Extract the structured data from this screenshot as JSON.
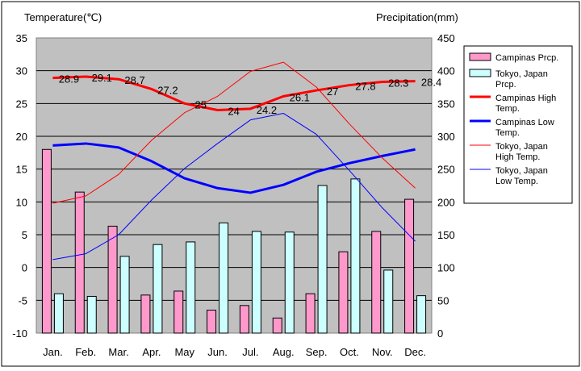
{
  "chart_data": {
    "type": "bar",
    "title": "",
    "left_axis": {
      "label": "Temperature(℃)",
      "min": -10,
      "max": 35,
      "step": 5
    },
    "right_axis": {
      "label": "Precipitation(mm)",
      "min": 0,
      "max": 450,
      "step": 50
    },
    "categories": [
      "Jan.",
      "Feb.",
      "Mar.",
      "Apr.",
      "May",
      "Jun.",
      "Jul.",
      "Aug.",
      "Sep.",
      "Oct.",
      "Nov.",
      "Dec."
    ],
    "grid": true,
    "legend_position": "right",
    "bar_series": [
      {
        "name": "Campinas Prcp.",
        "color": "#ff99cc",
        "values": [
          280,
          215,
          163,
          58,
          64,
          35,
          42,
          23,
          60,
          124,
          155,
          204
        ]
      },
      {
        "name": "Tokyo, Japan Prcp.",
        "color": "#ccffff",
        "values": [
          60,
          56,
          117,
          135,
          139,
          168,
          155,
          154,
          225,
          235,
          96,
          57
        ]
      }
    ],
    "line_series": [
      {
        "name": "Campinas High Temp.",
        "color": "#ff0000",
        "width": 3,
        "values": [
          28.9,
          29.1,
          28.7,
          27.2,
          25,
          24,
          24.2,
          26.1,
          27,
          27.8,
          28.3,
          28.4
        ],
        "labels": [
          "28.9",
          "29.1",
          "28.7",
          "27.2",
          "25",
          "24",
          "24.2",
          "26.1",
          "27",
          "27.8",
          "28.3",
          "28.4"
        ]
      },
      {
        "name": "Campinas Low Temp.",
        "color": "#0000ff",
        "width": 3,
        "values": [
          18.6,
          18.9,
          18.3,
          16.2,
          13.6,
          12.1,
          11.4,
          12.6,
          14.6,
          15.9,
          17.0,
          18.0
        ]
      },
      {
        "name": "Tokyo, Japan High Temp.",
        "color": "#ff0000",
        "width": 1,
        "values": [
          9.8,
          10.9,
          14.2,
          19.4,
          23.6,
          26.1,
          29.9,
          31.3,
          27.5,
          21.9,
          16.7,
          12.1
        ]
      },
      {
        "name": "Tokyo, Japan Low Temp.",
        "color": "#0000ff",
        "width": 1,
        "values": [
          1.2,
          2.1,
          5.0,
          10.3,
          15.1,
          18.9,
          22.5,
          23.5,
          20.3,
          14.8,
          9.1,
          4.0
        ]
      }
    ]
  }
}
